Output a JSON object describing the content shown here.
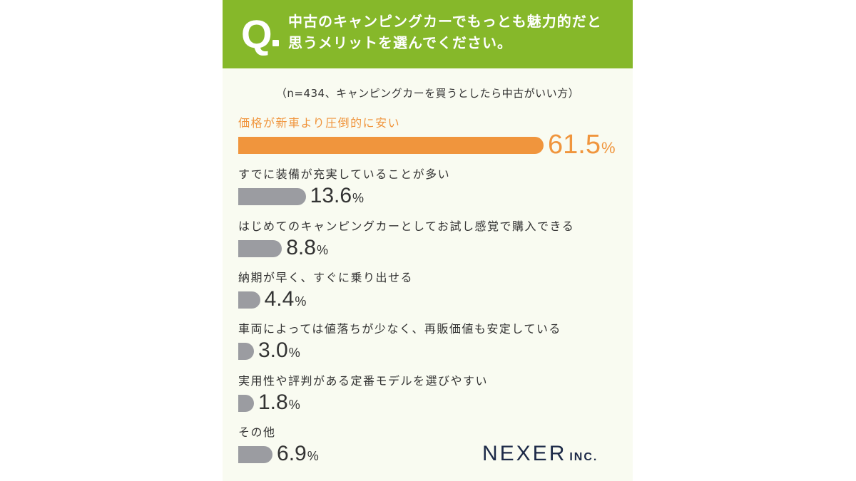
{
  "header": {
    "q_mark": "Q",
    "question_line1": "中古のキャンピングカーでもっとも魅力的だと",
    "question_line2": "思うメリットを選んでください。"
  },
  "sample_note": "（n=434、キャンピングカーを買うとしたら中古がいい方）",
  "colors": {
    "header_green": "#86b82a",
    "highlight_orange": "#f0953d",
    "bar_gray": "#9b9ca1",
    "card_bg": "#f9fbf1",
    "logo_navy": "#1d2a48"
  },
  "chart_data": {
    "type": "bar",
    "orientation": "horizontal",
    "unit": "%",
    "categories": [
      "価格が新車より圧倒的に安い",
      "すでに装備が充実していることが多い",
      "はじめてのキャンピングカーとしてお試し感覚で購入できる",
      "納期が早く、すぐに乗り出せる",
      "車両によっては値落ちが少なく、再販価値も安定している",
      "実用性や評判がある定番モデルを選びやすい",
      "その他"
    ],
    "values": [
      61.5,
      13.6,
      8.8,
      4.4,
      3.0,
      1.8,
      6.9
    ],
    "value_labels": [
      "61.5",
      "13.6",
      "8.8",
      "4.4",
      "3.0",
      "1.8",
      "6.9"
    ],
    "highlight_index": 0,
    "xlim": [
      0,
      61.5
    ]
  },
  "logo": {
    "main": "NEXER",
    "sub": "INC."
  }
}
